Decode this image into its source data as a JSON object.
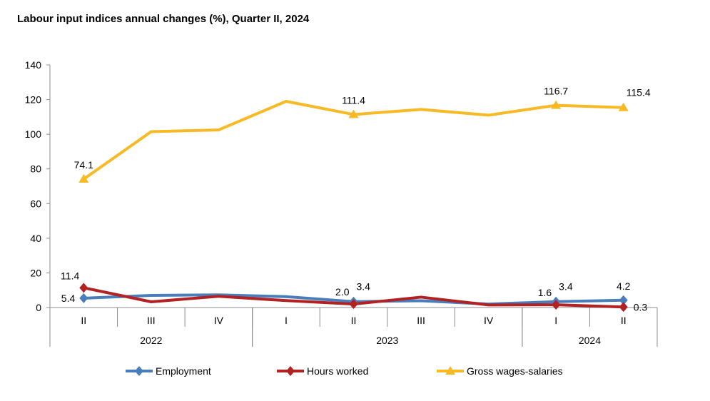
{
  "chart_data": {
    "type": "line",
    "title": "Labour input indices annual changes (%), Quarter II, 2024",
    "xlabel": "",
    "ylabel": "",
    "ylim": [
      0,
      140
    ],
    "yticks": [
      0,
      20,
      40,
      60,
      80,
      100,
      120,
      140
    ],
    "grid": false,
    "legend_position": "bottom",
    "categories": [
      "II",
      "III",
      "IV",
      "I",
      "II",
      "III",
      "IV",
      "I",
      "II"
    ],
    "category_groups": [
      {
        "label": "2022",
        "count": 3
      },
      {
        "label": "2023",
        "count": 4
      },
      {
        "label": "2024",
        "count": 2
      }
    ],
    "series": [
      {
        "name": "Employment",
        "color": "#4a7ebb",
        "marker": "diamond",
        "values": [
          5.4,
          7.0,
          7.3,
          6.3,
          3.4,
          3.9,
          2.0,
          3.4,
          4.2
        ],
        "labels": [
          {
            "index": 0,
            "text": "5.4",
            "pos": "left"
          },
          {
            "index": 4,
            "text": "3.4",
            "pos": "above-right"
          },
          {
            "index": 7,
            "text": "3.4",
            "pos": "above-right"
          },
          {
            "index": 8,
            "text": "4.2",
            "pos": "above"
          }
        ]
      },
      {
        "name": "Hours worked",
        "color": "#b22222",
        "marker": "diamond",
        "values": [
          11.4,
          3.3,
          6.5,
          4.0,
          2.0,
          6.0,
          1.5,
          1.6,
          0.3
        ],
        "labels": [
          {
            "index": 0,
            "text": "11.4",
            "pos": "above-left"
          },
          {
            "index": 4,
            "text": "2.0",
            "pos": "above-left"
          },
          {
            "index": 7,
            "text": "1.6",
            "pos": "above-left"
          },
          {
            "index": 8,
            "text": "0.3",
            "pos": "right"
          }
        ]
      },
      {
        "name": "Gross wages-salaries",
        "color": "#f7b924",
        "marker": "triangle",
        "values": [
          74.1,
          101.5,
          102.5,
          119.0,
          111.4,
          114.3,
          111.0,
          116.7,
          115.4
        ],
        "labels": [
          {
            "index": 0,
            "text": "74.1",
            "pos": "above"
          },
          {
            "index": 4,
            "text": "111.4",
            "pos": "above"
          },
          {
            "index": 7,
            "text": "116.7",
            "pos": "above"
          },
          {
            "index": 8,
            "text": "115.4",
            "pos": "above-right"
          }
        ]
      }
    ]
  }
}
